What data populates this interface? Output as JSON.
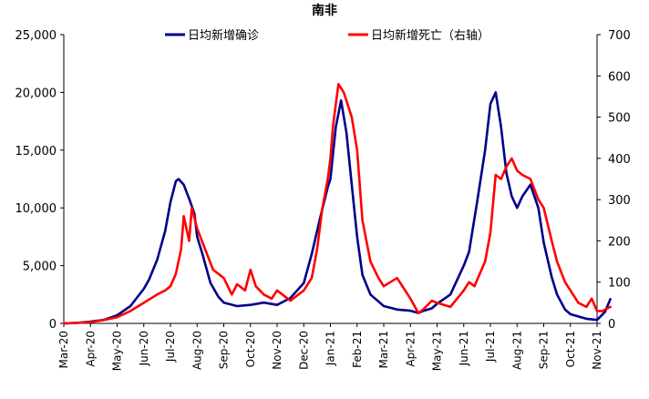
{
  "chart_data": {
    "type": "line",
    "title": "南非",
    "x_tick_labels": [
      "Mar-20",
      "Apr-20",
      "May-20",
      "Jun-20",
      "Jul-20",
      "Aug-20",
      "Sep-20",
      "Oct-20",
      "Nov-20",
      "Dec-20",
      "Jan-21",
      "Feb-21",
      "Mar-21",
      "Apr-21",
      "May-21",
      "Jun-21",
      "Jul-21",
      "Aug-21",
      "Sep-21",
      "Oct-21",
      "Nov-21"
    ],
    "y_left": {
      "range": [
        0,
        25000
      ],
      "ticks": [
        0,
        5000,
        10000,
        15000,
        20000,
        25000
      ],
      "tick_labels": [
        "0",
        "5,000",
        "10,000",
        "15,000",
        "20,000",
        "25,000"
      ]
    },
    "y_right": {
      "range": [
        0,
        700
      ],
      "ticks": [
        0,
        100,
        200,
        300,
        400,
        500,
        600,
        700
      ],
      "tick_labels": [
        "0",
        "100",
        "200",
        "300",
        "400",
        "500",
        "600",
        "700"
      ]
    },
    "grid": false,
    "legend": "top-center",
    "series": [
      {
        "name": "日均新增确诊",
        "axis": "left",
        "color": "#00008B",
        "x": [
          0,
          0.5,
          1,
          1.5,
          2,
          2.5,
          3,
          3.2,
          3.5,
          3.8,
          4,
          4.2,
          4.3,
          4.5,
          4.7,
          4.9,
          5,
          5.2,
          5.5,
          5.8,
          6,
          6.5,
          7,
          7.5,
          8,
          8.5,
          9,
          9.3,
          9.6,
          9.9,
          10,
          10.2,
          10.4,
          10.6,
          10.8,
          11,
          11.2,
          11.5,
          12,
          12.5,
          13,
          13.3,
          13.5,
          13.8,
          14,
          14.5,
          15,
          15.2,
          15.5,
          15.8,
          16,
          16.2,
          16.4,
          16.6,
          16.8,
          17,
          17.2,
          17.5,
          17.8,
          18,
          18.3,
          18.5,
          18.8,
          19,
          19.3,
          19.6,
          20,
          20.3,
          20.5
        ],
        "values": [
          0,
          50,
          150,
          300,
          700,
          1500,
          3000,
          3800,
          5500,
          8000,
          10500,
          12300,
          12500,
          12000,
          10800,
          9500,
          7500,
          6000,
          3500,
          2300,
          1800,
          1500,
          1600,
          1800,
          1600,
          2200,
          3500,
          6000,
          9000,
          11800,
          12500,
          17000,
          19300,
          16500,
          12000,
          7500,
          4200,
          2500,
          1500,
          1200,
          1100,
          900,
          1100,
          1300,
          1700,
          2500,
          5000,
          6200,
          10500,
          15000,
          19000,
          20000,
          17000,
          13000,
          11000,
          10000,
          11000,
          12000,
          10000,
          7000,
          4000,
          2500,
          1200,
          800,
          600,
          400,
          300,
          1000,
          2100
        ]
      },
      {
        "name": "日均新增死亡（右轴）",
        "axis": "right",
        "color": "#FF0000",
        "x": [
          0,
          0.5,
          1,
          1.5,
          2,
          2.5,
          3,
          3.5,
          3.8,
          4,
          4.2,
          4.4,
          4.5,
          4.6,
          4.7,
          4.8,
          5,
          5.3,
          5.6,
          6,
          6.3,
          6.5,
          6.8,
          7,
          7.2,
          7.5,
          7.8,
          8,
          8.5,
          9,
          9.3,
          9.5,
          9.7,
          9.9,
          10,
          10.1,
          10.3,
          10.5,
          10.6,
          10.8,
          11,
          11.2,
          11.5,
          11.8,
          12,
          12.5,
          13,
          13.3,
          13.5,
          13.8,
          14,
          14.5,
          15,
          15.2,
          15.4,
          15.6,
          15.8,
          16,
          16.2,
          16.4,
          16.6,
          16.8,
          17,
          17.2,
          17.5,
          17.8,
          18,
          18.3,
          18.5,
          18.8,
          19,
          19.3,
          19.6,
          19.8,
          20,
          20.2,
          20.5
        ],
        "values": [
          0,
          1,
          3,
          8,
          15,
          30,
          50,
          70,
          80,
          90,
          120,
          180,
          260,
          230,
          200,
          280,
          230,
          180,
          130,
          110,
          70,
          95,
          80,
          130,
          90,
          70,
          60,
          80,
          55,
          80,
          110,
          180,
          280,
          350,
          400,
          480,
          580,
          560,
          540,
          500,
          420,
          250,
          150,
          110,
          90,
          110,
          60,
          25,
          35,
          55,
          50,
          40,
          80,
          100,
          90,
          120,
          150,
          220,
          360,
          350,
          380,
          400,
          370,
          360,
          350,
          300,
          280,
          200,
          150,
          100,
          80,
          50,
          40,
          60,
          30,
          30,
          40
        ]
      }
    ]
  }
}
